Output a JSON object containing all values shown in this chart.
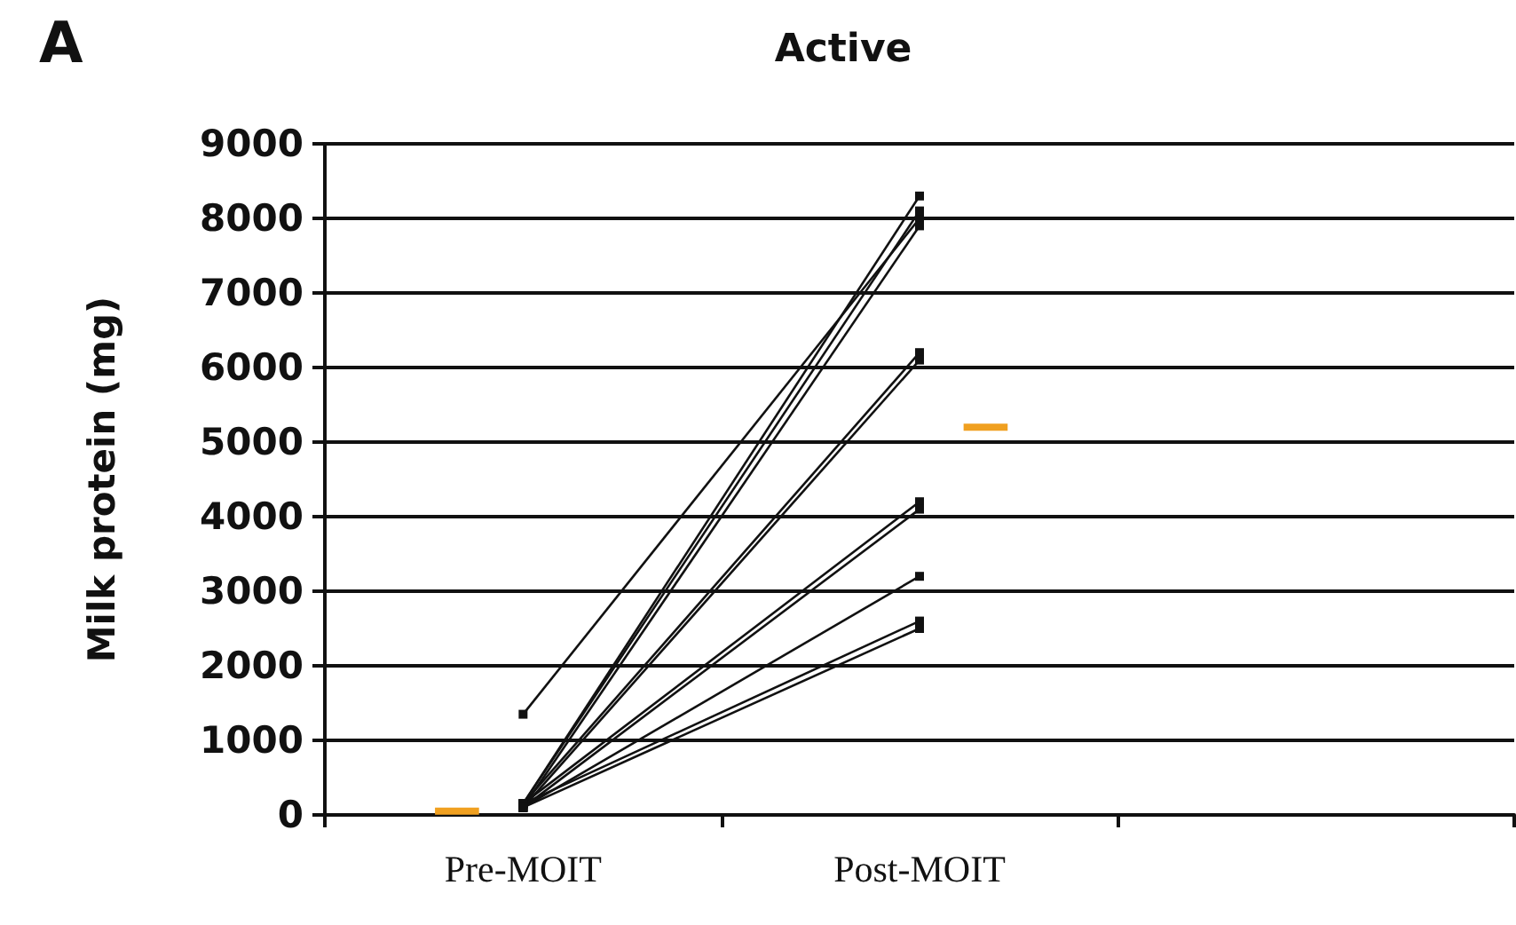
{
  "chart_data": {
    "type": "line",
    "title": "Active",
    "ylabel": "Milk protein (mg)",
    "annotations": [
      "A"
    ],
    "categories": [
      null,
      null,
      null,
      null,
      "Pre-MOIT",
      null,
      null,
      null,
      null,
      null,
      null,
      null,
      null,
      "Post-MOIT",
      null,
      null,
      null,
      null,
      null,
      null,
      null,
      null,
      null,
      null,
      null,
      null,
      null
    ],
    "ylim": [
      0,
      9000
    ],
    "yticks": [
      0,
      1000,
      2000,
      3000,
      4000,
      5000,
      6000,
      7000,
      8000,
      9000
    ],
    "grid": "y",
    "marker": "square",
    "line_style": "solid",
    "series": [
      {
        "color": "#111111",
        "values": [
          null,
          null,
          null,
          null,
          1350,
          null,
          null,
          null,
          null,
          null,
          null,
          null,
          null,
          8000,
          null,
          null,
          null,
          null,
          null,
          null,
          null,
          null,
          null,
          null,
          null,
          null,
          null
        ]
      },
      {
        "color": "#111111",
        "values": [
          null,
          null,
          null,
          null,
          150,
          null,
          null,
          null,
          null,
          null,
          null,
          null,
          null,
          8300,
          null,
          null,
          null,
          null,
          null,
          null,
          null,
          null,
          null,
          null,
          null,
          null,
          null
        ]
      },
      {
        "color": "#111111",
        "values": [
          null,
          null,
          null,
          null,
          150,
          null,
          null,
          null,
          null,
          null,
          null,
          null,
          null,
          8100,
          null,
          null,
          null,
          null,
          null,
          null,
          null,
          null,
          null,
          null,
          null,
          null,
          null
        ]
      },
      {
        "color": "#111111",
        "values": [
          null,
          null,
          null,
          null,
          100,
          null,
          null,
          null,
          null,
          null,
          null,
          null,
          null,
          7900,
          null,
          null,
          null,
          null,
          null,
          null,
          null,
          null,
          null,
          null,
          null,
          null,
          null
        ]
      },
      {
        "color": "#111111",
        "values": [
          null,
          null,
          null,
          null,
          150,
          null,
          null,
          null,
          null,
          null,
          null,
          null,
          null,
          6200,
          null,
          null,
          null,
          null,
          null,
          null,
          null,
          null,
          null,
          null,
          null,
          null,
          null
        ]
      },
      {
        "color": "#111111",
        "values": [
          null,
          null,
          null,
          null,
          100,
          null,
          null,
          null,
          null,
          null,
          null,
          null,
          null,
          6100,
          null,
          null,
          null,
          null,
          null,
          null,
          null,
          null,
          null,
          null,
          null,
          null,
          null
        ]
      },
      {
        "color": "#111111",
        "values": [
          null,
          null,
          null,
          null,
          150,
          null,
          null,
          null,
          null,
          null,
          null,
          null,
          null,
          4200,
          null,
          null,
          null,
          null,
          null,
          null,
          null,
          null,
          null,
          null,
          null,
          null,
          null
        ]
      },
      {
        "color": "#111111",
        "values": [
          null,
          null,
          null,
          null,
          100,
          null,
          null,
          null,
          null,
          null,
          null,
          null,
          null,
          4100,
          null,
          null,
          null,
          null,
          null,
          null,
          null,
          null,
          null,
          null,
          null,
          null,
          null
        ]
      },
      {
        "color": "#111111",
        "values": [
          null,
          null,
          null,
          null,
          100,
          null,
          null,
          null,
          null,
          null,
          null,
          null,
          null,
          3200,
          null,
          null,
          null,
          null,
          null,
          null,
          null,
          null,
          null,
          null,
          null,
          null,
          null
        ]
      },
      {
        "color": "#111111",
        "values": [
          null,
          null,
          null,
          null,
          150,
          null,
          null,
          null,
          null,
          null,
          null,
          null,
          null,
          2600,
          null,
          null,
          null,
          null,
          null,
          null,
          null,
          null,
          null,
          null,
          null,
          null,
          null
        ]
      },
      {
        "color": "#111111",
        "values": [
          null,
          null,
          null,
          null,
          100,
          null,
          null,
          null,
          null,
          null,
          null,
          null,
          null,
          2500,
          null,
          null,
          null,
          null,
          null,
          null,
          null,
          null,
          null,
          null,
          null,
          null,
          null
        ]
      },
      {
        "color": "#f0a020",
        "marker": "none",
        "values": [
          null,
          null,
          50,
          50,
          null,
          null,
          null,
          null,
          null,
          null,
          null,
          null,
          null,
          null,
          null,
          null,
          null,
          null,
          null,
          null,
          null,
          null,
          null,
          null,
          null,
          null,
          null
        ]
      },
      {
        "color": "#f0a020",
        "marker": "none",
        "values": [
          null,
          null,
          null,
          null,
          null,
          null,
          null,
          null,
          null,
          null,
          null,
          null,
          null,
          null,
          5200,
          5200,
          null,
          null,
          null,
          null,
          null,
          null,
          null,
          null,
          null,
          null,
          null
        ]
      }
    ]
  }
}
